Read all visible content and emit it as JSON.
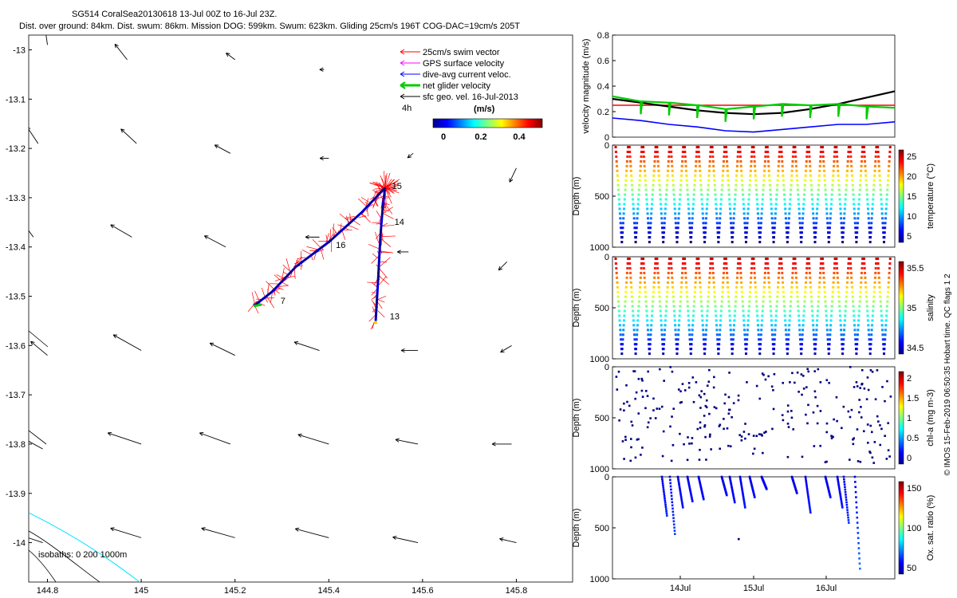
{
  "header": {
    "line1": "SG514 CoralSea20130618 13-Jul 00Z to 16-Jul 23Z.",
    "line2": "Dist. over ground: 84km. Dist. swum: 86km. Mission DOG: 599km. Swum: 623km. Gliding 25cm/s 196T COG-DAC=19cm/s 205T"
  },
  "credit": "© IMOS 15-Feb-2019 06:50:35 Hobart time. QC flags 1  2",
  "colors": {
    "swim": "#ff0000",
    "gps": "#ff00ff",
    "dac": "#0000ff",
    "net": "#00cc00",
    "sfc": "#000000",
    "isobath": "#00e5ff"
  },
  "chart_data": [
    {
      "type": "map",
      "xticks": [
        "144.8",
        "145",
        "145.2",
        "145.4",
        "145.6",
        "145.8"
      ],
      "yticks": [
        "-13",
        "-13.1",
        "-13.2",
        "-13.3",
        "-13.4",
        "-13.5",
        "-13.6",
        "-13.7",
        "-13.8",
        "-13.9",
        "-14"
      ],
      "xlim": [
        144.76,
        145.92
      ],
      "ylim": [
        -14.08,
        -12.97
      ],
      "legend": {
        "items": [
          "25cm/s swim vector",
          "GPS surface velocity",
          "dive-avg current veloc.",
          "net glider velocity",
          "sfc geo. vel. 16-Jul-2013"
        ],
        "time_label": "4h",
        "colorbar_title": "(m/s)",
        "colorbar_ticks": [
          "0",
          "0.2",
          "0.4"
        ]
      },
      "isobath_label": "isobaths: 0   200   1000m",
      "day_labels": [
        {
          "text": "13",
          "lon": 145.53,
          "lat": -13.547
        },
        {
          "text": "14",
          "lon": 145.54,
          "lat": -13.355
        },
        {
          "text": "15",
          "lon": 145.535,
          "lat": -13.282
        },
        {
          "text": "16",
          "lon": 145.415,
          "lat": -13.402
        },
        {
          "text": "7",
          "lon": 145.297,
          "lat": -13.515
        }
      ],
      "track_segments": [
        [
          [
            145.5,
            -13.55
          ],
          [
            145.505,
            -13.47
          ],
          [
            145.51,
            -13.38
          ],
          [
            145.515,
            -13.32
          ],
          [
            145.52,
            -13.28
          ]
        ],
        [
          [
            145.52,
            -13.28
          ],
          [
            145.47,
            -13.33
          ],
          [
            145.4,
            -13.39
          ],
          [
            145.33,
            -13.44
          ],
          [
            145.28,
            -13.49
          ],
          [
            145.24,
            -13.52
          ]
        ]
      ],
      "sfc_vectors": [
        {
          "lon": 144.8,
          "lat": -12.99,
          "u": -0.05,
          "v": 0.35
        },
        {
          "lon": 144.97,
          "lat": -13.02,
          "u": -0.22,
          "v": 0.28
        },
        {
          "lon": 145.2,
          "lat": -13.02,
          "u": -0.16,
          "v": 0.12
        },
        {
          "lon": 145.39,
          "lat": -13.04,
          "u": -0.08,
          "v": 0.0
        },
        {
          "lon": 144.78,
          "lat": -13.19,
          "u": -0.2,
          "v": 0.3
        },
        {
          "lon": 144.99,
          "lat": -13.19,
          "u": -0.28,
          "v": 0.26
        },
        {
          "lon": 145.19,
          "lat": -13.21,
          "u": -0.28,
          "v": 0.15
        },
        {
          "lon": 145.4,
          "lat": -13.22,
          "u": -0.16,
          "v": 0.0
        },
        {
          "lon": 145.58,
          "lat": -13.21,
          "u": -0.1,
          "v": -0.08
        },
        {
          "lon": 145.8,
          "lat": -13.24,
          "u": -0.12,
          "v": -0.25
        },
        {
          "lon": 144.77,
          "lat": -13.38,
          "u": -0.22,
          "v": 0.3
        },
        {
          "lon": 144.98,
          "lat": -13.38,
          "u": -0.38,
          "v": 0.22
        },
        {
          "lon": 145.18,
          "lat": -13.4,
          "u": -0.38,
          "v": 0.2
        },
        {
          "lon": 145.38,
          "lat": -13.38,
          "u": -0.25,
          "v": 0.0
        },
        {
          "lon": 145.57,
          "lat": -13.41,
          "u": -0.2,
          "v": 0.0
        },
        {
          "lon": 145.78,
          "lat": -13.43,
          "u": -0.15,
          "v": -0.15
        },
        {
          "lon": 144.8,
          "lat": -13.62,
          "u": -0.3,
          "v": 0.25
        },
        {
          "lon": 145.0,
          "lat": -13.61,
          "u": -0.5,
          "v": 0.28
        },
        {
          "lon": 145.2,
          "lat": -13.62,
          "u": -0.45,
          "v": 0.22
        },
        {
          "lon": 145.38,
          "lat": -13.61,
          "u": -0.45,
          "v": 0.15
        },
        {
          "lon": 145.59,
          "lat": -13.61,
          "u": -0.3,
          "v": 0.0
        },
        {
          "lon": 145.79,
          "lat": -13.6,
          "u": -0.2,
          "v": -0.12
        },
        {
          "lon": 144.79,
          "lat": -13.81,
          "u": -0.4,
          "v": 0.22
        },
        {
          "lon": 145.0,
          "lat": -13.8,
          "u": -0.6,
          "v": 0.2
        },
        {
          "lon": 145.19,
          "lat": -13.8,
          "u": -0.55,
          "v": 0.2
        },
        {
          "lon": 145.4,
          "lat": -13.8,
          "u": -0.55,
          "v": 0.17
        },
        {
          "lon": 145.59,
          "lat": -13.8,
          "u": -0.4,
          "v": 0.08
        },
        {
          "lon": 145.79,
          "lat": -13.8,
          "u": -0.35,
          "v": 0.0
        },
        {
          "lon": 144.79,
          "lat": -14.0,
          "u": -0.45,
          "v": 0.15
        },
        {
          "lon": 145.0,
          "lat": -13.99,
          "u": -0.55,
          "v": 0.17
        },
        {
          "lon": 145.2,
          "lat": -13.99,
          "u": -0.6,
          "v": 0.17
        },
        {
          "lon": 145.4,
          "lat": -13.99,
          "u": -0.6,
          "v": 0.16
        },
        {
          "lon": 145.59,
          "lat": -14.0,
          "u": -0.45,
          "v": 0.1
        },
        {
          "lon": 145.8,
          "lat": -14.0,
          "u": -0.3,
          "v": 0.07
        }
      ]
    },
    {
      "type": "line",
      "ylabel": "velocity magnitude (m/s)",
      "ylim": [
        0,
        0.8
      ],
      "yticks": [
        "0",
        "0.2",
        "0.4",
        "0.6",
        "0.8"
      ],
      "x": [
        0,
        0.1,
        0.2,
        0.3,
        0.4,
        0.5,
        0.6,
        0.7,
        0.8,
        0.9,
        1.0
      ],
      "series": [
        {
          "key": "swim",
          "values": [
            0.25,
            0.25,
            0.25,
            0.25,
            0.25,
            0.25,
            0.25,
            0.25,
            0.25,
            0.25,
            0.25
          ]
        },
        {
          "key": "sfc",
          "values": [
            0.3,
            0.27,
            0.24,
            0.21,
            0.19,
            0.18,
            0.19,
            0.22,
            0.26,
            0.31,
            0.36
          ]
        },
        {
          "key": "net",
          "values": [
            0.32,
            0.28,
            0.27,
            0.25,
            0.22,
            0.24,
            0.26,
            0.25,
            0.26,
            0.24,
            0.23
          ]
        },
        {
          "key": "dac",
          "values": [
            0.15,
            0.13,
            0.1,
            0.08,
            0.05,
            0.04,
            0.06,
            0.08,
            0.1,
            0.1,
            0.12
          ]
        }
      ]
    },
    {
      "type": "scatter",
      "ylabel": "Depth (m)",
      "yticks": [
        "0",
        "500",
        "1000"
      ],
      "colorbar_label": "temperature (°C)",
      "colorbar_ticks": [
        "25",
        "20",
        "15",
        "10",
        "5"
      ],
      "profile": "yo-yo",
      "max_depth": 950,
      "dives": 20
    },
    {
      "type": "scatter",
      "ylabel": "Depth (m)",
      "yticks": [
        "0",
        "500",
        "1000"
      ],
      "colorbar_label": "salinity",
      "colorbar_ticks": [
        "35.5",
        "35",
        "34.5"
      ],
      "profile": "yo-yo",
      "max_depth": 950,
      "dives": 20
    },
    {
      "type": "scatter",
      "ylabel": "Depth (m)",
      "yticks": [
        "0",
        "500",
        "1000"
      ],
      "colorbar_label": "chl-a (mg m-3)",
      "colorbar_ticks": [
        "2",
        "1.5",
        "1",
        "0.5",
        "0"
      ],
      "profile": "sparse",
      "max_depth": 950
    },
    {
      "type": "scatter",
      "ylabel": "Depth (m)",
      "yticks": [
        "0",
        "500",
        "1000"
      ],
      "xticks": [
        "14Jul",
        "15Jul",
        "16Jul"
      ],
      "colorbar_label": "Ox. sat. ratio (%)",
      "colorbar_ticks": [
        "150",
        "100",
        "50"
      ],
      "profile": "partial",
      "max_depth": 950
    }
  ]
}
